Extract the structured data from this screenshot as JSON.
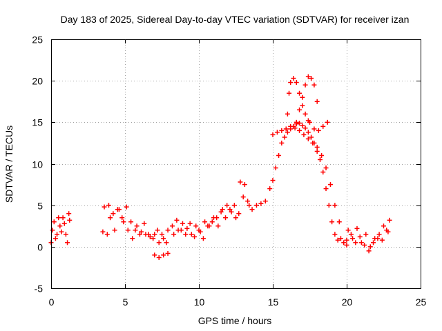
{
  "chart_data": {
    "type": "scatter",
    "title": "Day 183 of 2025, Sidereal Day-to-day VTEC variation (SDTVAR) for receiver izan",
    "xlabel": "GPS time / hours",
    "ylabel": "SDTVAR / TECUs",
    "xlim": [
      0,
      25
    ],
    "ylim": [
      -5,
      25
    ],
    "xticks": [
      "0",
      "5",
      "10",
      "15",
      "20",
      "25"
    ],
    "yticks": [
      "-5",
      "0",
      "5",
      "10",
      "15",
      "20",
      "25"
    ],
    "grid": true,
    "marker": "+",
    "color": "#ff0000",
    "series": [
      {
        "name": "SDTVAR",
        "x": [
          0.0,
          0.2,
          0.4,
          0.6,
          0.8,
          1.0,
          1.2,
          0.1,
          0.3,
          0.5,
          0.7,
          0.9,
          1.1,
          1.25,
          3.5,
          3.8,
          4.0,
          4.3,
          4.6,
          4.9,
          5.2,
          5.5,
          5.8,
          6.1,
          6.4,
          6.7,
          7.0,
          7.3,
          7.6,
          7.9,
          3.6,
          3.9,
          4.2,
          4.5,
          4.8,
          5.1,
          5.4,
          5.7,
          6.0,
          6.3,
          6.6,
          6.9,
          7.2,
          7.5,
          7.8,
          7.0,
          7.3,
          7.6,
          7.9,
          8.2,
          8.5,
          8.8,
          9.1,
          9.4,
          9.7,
          10.0,
          10.3,
          10.6,
          10.9,
          11.2,
          11.5,
          11.8,
          12.1,
          12.4,
          12.7,
          13.0,
          13.3,
          13.6,
          13.9,
          14.2,
          8.3,
          8.6,
          8.9,
          9.2,
          9.5,
          9.8,
          10.1,
          10.4,
          10.7,
          11.0,
          11.3,
          11.6,
          11.9,
          12.2,
          12.5,
          12.8,
          13.1,
          13.4,
          14.5,
          14.8,
          15.0,
          15.2,
          15.4,
          15.6,
          15.8,
          16.0,
          16.2,
          16.4,
          16.6,
          16.8,
          17.0,
          17.2,
          17.4,
          17.6,
          17.8,
          18.0,
          18.2,
          18.4,
          18.6,
          18.8,
          19.0,
          19.2,
          19.4,
          19.6,
          19.8,
          20.0,
          15.0,
          15.3,
          15.6,
          15.9,
          16.2,
          16.5,
          16.8,
          17.1,
          17.4,
          17.7,
          18.0,
          18.3,
          18.6,
          18.9,
          19.2,
          19.5,
          16.0,
          16.1,
          16.2,
          16.4,
          16.6,
          16.8,
          17.0,
          17.2,
          17.4,
          16.6,
          16.8,
          17.0,
          17.2,
          17.4,
          17.6,
          17.8,
          18.0,
          17.5,
          17.8,
          18.1,
          18.4,
          18.7,
          20.0,
          20.3,
          20.6,
          20.9,
          21.2,
          21.5,
          21.8,
          22.1,
          22.4,
          22.7,
          22.9,
          20.1,
          20.4,
          20.7,
          21.0,
          21.3,
          21.6,
          21.9,
          22.2,
          22.5,
          22.8
        ],
        "y": [
          0.5,
          3.0,
          1.5,
          2.5,
          3.5,
          1.5,
          4.0,
          2.0,
          1.0,
          3.5,
          1.8,
          2.8,
          0.5,
          3.2,
          1.8,
          1.5,
          3.5,
          2.0,
          4.5,
          3.0,
          2.0,
          1.0,
          2.5,
          1.8,
          1.5,
          1.2,
          1.5,
          0.5,
          1.0,
          2.0,
          4.8,
          5.0,
          4.0,
          4.5,
          3.5,
          4.8,
          3.0,
          2.0,
          1.5,
          2.8,
          1.5,
          1.0,
          2.0,
          1.5,
          0.5,
          -1.0,
          -1.3,
          -1.0,
          -0.8,
          2.5,
          3.2,
          2.0,
          1.5,
          2.8,
          1.2,
          2.0,
          1.0,
          2.5,
          3.0,
          3.5,
          4.2,
          3.5,
          4.5,
          5.0,
          4.0,
          6.0,
          5.5,
          4.5,
          5.0,
          5.2,
          1.5,
          2.0,
          2.8,
          2.2,
          1.5,
          2.5,
          1.8,
          3.0,
          2.5,
          3.5,
          2.5,
          4.5,
          5.0,
          4.2,
          3.5,
          7.8,
          7.5,
          5.0,
          5.5,
          7.0,
          8.0,
          9.5,
          11.0,
          12.5,
          13.2,
          13.8,
          14.2,
          14.5,
          14.8,
          14.9,
          14.6,
          14.3,
          13.8,
          13.2,
          12.5,
          11.5,
          10.5,
          9.0,
          7.0,
          5.0,
          3.0,
          1.5,
          0.8,
          1.0,
          0.5,
          0.2,
          13.5,
          13.8,
          14.0,
          14.2,
          14.5,
          14.3,
          14.0,
          13.5,
          13.0,
          12.5,
          12.0,
          11.0,
          9.5,
          7.5,
          5.0,
          3.0,
          16.0,
          18.5,
          19.8,
          20.3,
          19.8,
          18.5,
          17.0,
          16.0,
          15.2,
          15.0,
          16.5,
          18.0,
          19.5,
          20.5,
          20.3,
          19.5,
          17.5,
          15.0,
          14.2,
          14.0,
          14.5,
          15.0,
          0.8,
          1.5,
          0.5,
          1.2,
          0.2,
          -0.5,
          0.5,
          1.0,
          0.8,
          2.0,
          3.2,
          2.0,
          1.0,
          2.2,
          0.5,
          1.5,
          0.0,
          1.0,
          1.5,
          2.5,
          1.8
        ]
      }
    ]
  }
}
